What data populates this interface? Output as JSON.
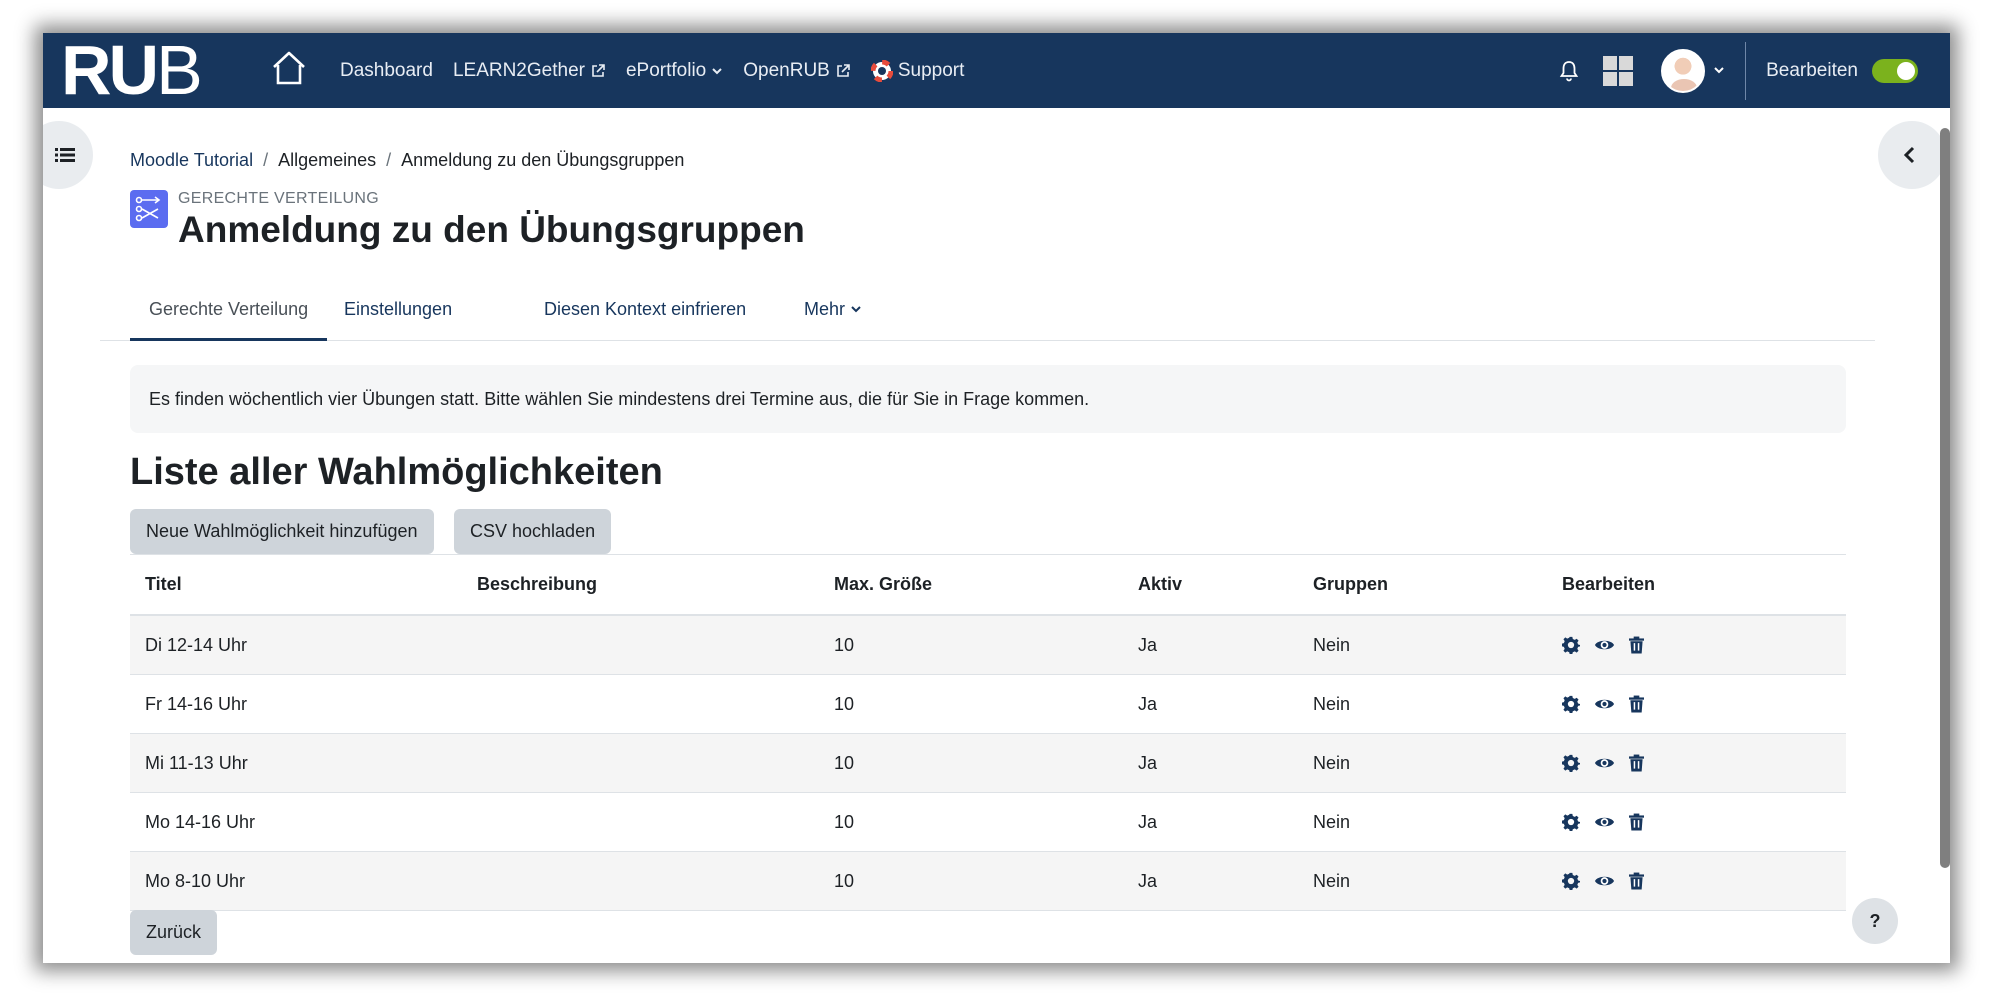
{
  "navbar": {
    "logo": "RUB",
    "links": [
      {
        "label": "Dashboard",
        "icon": null
      },
      {
        "label": "LEARN2Gether",
        "icon": "external-link-icon"
      },
      {
        "label": "ePortfolio",
        "icon": "chevron-down-icon"
      },
      {
        "label": "OpenRUB",
        "icon": "external-link-icon"
      },
      {
        "label": "Support",
        "icon": "lifebuoy-icon"
      }
    ],
    "edit_mode_label": "Bearbeiten",
    "edit_mode_on": true,
    "colors": {
      "bar": "#17365d",
      "toggle": "#7bb21d"
    }
  },
  "breadcrumb": [
    "Moodle Tutorial",
    "Allgemeines",
    "Anmeldung zu den Übungsgruppen"
  ],
  "activity": {
    "type": "GERECHTE VERTEILUNG",
    "title": "Anmeldung zu den Übungsgruppen"
  },
  "tabs": [
    {
      "label": "Gerechte Verteilung",
      "active": true
    },
    {
      "label": "Einstellungen",
      "active": false
    },
    {
      "label": "Diesen Kontext einfrieren",
      "active": false
    },
    {
      "label": "Mehr",
      "active": false
    }
  ],
  "intro": "Es finden wöchentlich vier Übungen statt. Bitte wählen Sie mindestens drei Termine aus, die für Sie in Frage kommen.",
  "section": {
    "title": "Liste aller Wahlmöglichkeiten",
    "add_button": "Neue Wahlmöglichkeit hinzufügen",
    "csv_button": "CSV hochladen"
  },
  "table": {
    "headers": [
      "Titel",
      "Beschreibung",
      "Max. Größe",
      "Aktiv",
      "Gruppen",
      "Bearbeiten"
    ],
    "rows": [
      [
        "Di 12-14 Uhr",
        "",
        "10",
        "Ja",
        "Nein"
      ],
      [
        "Fr 14-16 Uhr",
        "",
        "10",
        "Ja",
        "Nein"
      ],
      [
        "Mi 11-13 Uhr",
        "",
        "10",
        "Ja",
        "Nein"
      ],
      [
        "Mo 14-16 Uhr",
        "",
        "10",
        "Ja",
        "Nein"
      ],
      [
        "Mo 8-10 Uhr",
        "",
        "10",
        "Ja",
        "Nein"
      ]
    ]
  },
  "back_button": "Zurück",
  "help_label": "?"
}
